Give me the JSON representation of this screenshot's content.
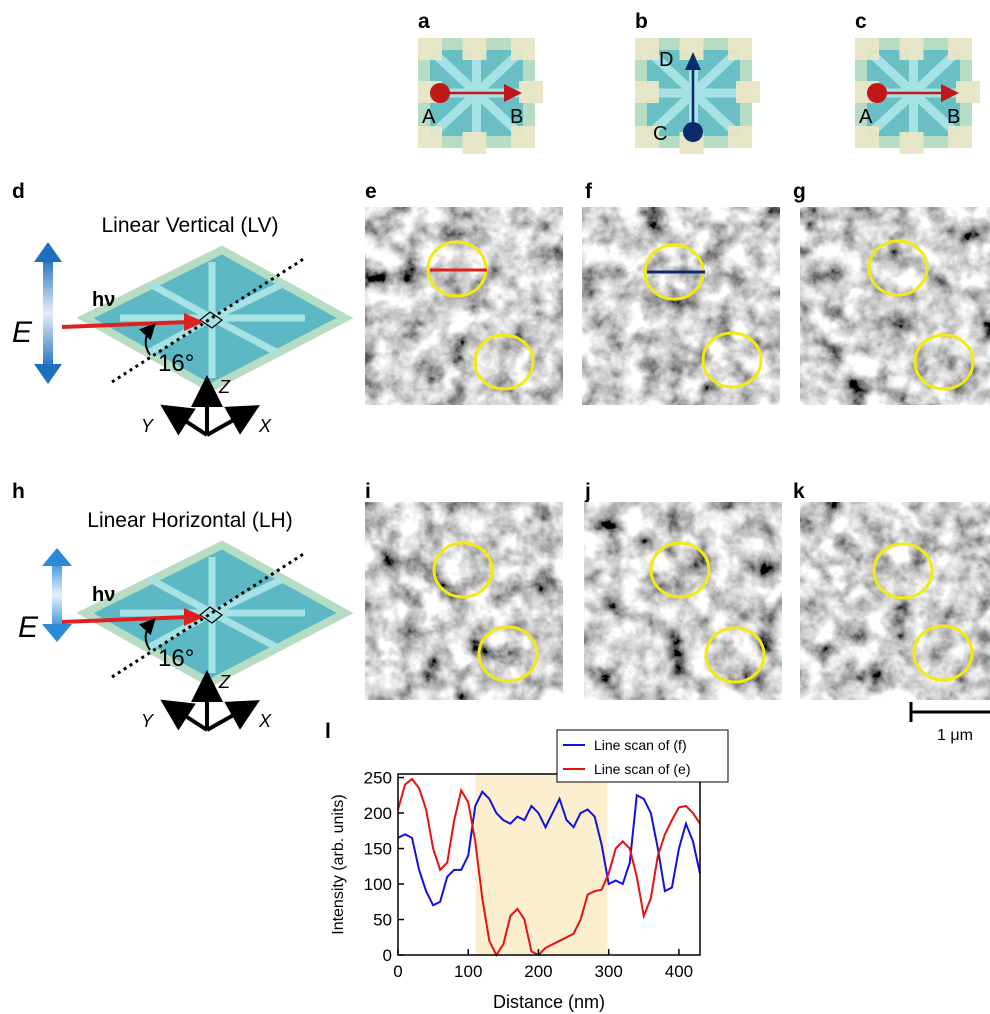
{
  "panels": {
    "labels": [
      "a",
      "b",
      "c",
      "d",
      "e",
      "f",
      "g",
      "h",
      "i",
      "j",
      "k",
      "l"
    ]
  },
  "devices": [
    {
      "start": "A",
      "end": "B"
    },
    {
      "start": "C",
      "end": "D"
    },
    {
      "start": "A",
      "end": "B"
    }
  ],
  "geometry": [
    {
      "title": "Linear Vertical (LV)",
      "field": "E",
      "photon": "hν",
      "angle": "16°",
      "axes": [
        "Z",
        "Y",
        "X"
      ]
    },
    {
      "title": "Linear Horizontal (LH)",
      "field": "E",
      "photon": "hν",
      "angle": "16°",
      "axes": [
        "Z",
        "Y",
        "X"
      ]
    }
  ],
  "scale_bar": "1 μm",
  "chart_data": {
    "type": "line",
    "xlabel": "Distance (nm)",
    "ylabel": "Intensity (arb. units)",
    "x": [
      0,
      10,
      20,
      30,
      40,
      50,
      60,
      70,
      80,
      90,
      100,
      110,
      120,
      130,
      140,
      150,
      160,
      170,
      180,
      190,
      200,
      210,
      220,
      230,
      240,
      250,
      260,
      270,
      280,
      290,
      300,
      310,
      320,
      330,
      340,
      350,
      360,
      370,
      380,
      390,
      400,
      410,
      420,
      430
    ],
    "series": [
      {
        "name": "Line scan of (f)",
        "color": "#1010e0",
        "values": [
          165,
          170,
          165,
          120,
          90,
          70,
          75,
          110,
          120,
          120,
          140,
          210,
          230,
          220,
          200,
          190,
          185,
          195,
          190,
          210,
          200,
          180,
          200,
          220,
          190,
          180,
          200,
          205,
          195,
          155,
          100,
          105,
          100,
          130,
          225,
          220,
          200,
          150,
          90,
          95,
          150,
          185,
          160,
          115
        ]
      },
      {
        "name": "Line scan of (e)",
        "color": "#e81010",
        "values": [
          205,
          240,
          248,
          235,
          205,
          150,
          120,
          130,
          190,
          232,
          215,
          160,
          80,
          20,
          0,
          15,
          55,
          65,
          50,
          5,
          0,
          10,
          15,
          20,
          25,
          30,
          50,
          85,
          90,
          92,
          115,
          150,
          160,
          150,
          110,
          55,
          80,
          140,
          170,
          190,
          208,
          210,
          200,
          185
        ]
      }
    ],
    "highlight": [
      110,
      298
    ],
    "xlim": [
      0,
      430
    ],
    "ylim": [
      0,
      255
    ],
    "xticks": [
      0,
      100,
      200,
      300,
      400
    ],
    "yticks": [
      0,
      50,
      100,
      150,
      200,
      250
    ]
  }
}
